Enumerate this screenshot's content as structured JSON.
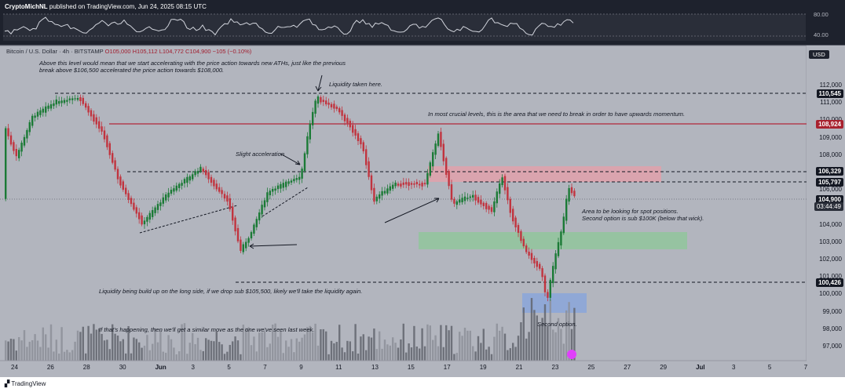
{
  "header": {
    "author": "CryptoMichNL",
    "text": "published on TradingView.com, Jun 24, 2025 08:15 UTC"
  },
  "symbol": {
    "name": "Bitcoin / U.S. Dollar · 4h · BITSTAMP",
    "ohlc": "O105,000 H105,112 L104,772 C104,900 −105 (−0.10%)"
  },
  "currency": "USD",
  "indicator_scale": [
    "80.00",
    "40.00"
  ],
  "price_scale": [
    "112,000",
    "111,000",
    "110,000",
    "109,000",
    "108,000",
    "107,000",
    "106,000",
    "105,000",
    "104,000",
    "103,000",
    "102,000",
    "101,000",
    "100,000",
    "99,000",
    "98,000",
    "97,000"
  ],
  "price_tags": [
    {
      "label": "110,545",
      "style": "dark"
    },
    {
      "label": "108,924",
      "style": "red"
    },
    {
      "label": "106,329",
      "style": "dark"
    },
    {
      "label": "105,797",
      "style": "dark"
    },
    {
      "label": "104,900",
      "style": "dark"
    },
    {
      "label": "03:44:49",
      "style": "dark"
    },
    {
      "label": "100,426",
      "style": "dark"
    }
  ],
  "time_axis": [
    "24",
    "26",
    "28",
    "30",
    "Jun",
    "3",
    "5",
    "7",
    "9",
    "11",
    "13",
    "15",
    "17",
    "19",
    "21",
    "23",
    "25",
    "27",
    "29",
    "Jul",
    "3",
    "5",
    "7"
  ],
  "annotations": {
    "ath_note_1": "Above this level would mean that we start accelerating with the price action towards new ATHs, just like the previous",
    "ath_note_2": "break above $106,500 accelerated the price action towards $108,000.",
    "liquidity_taken": "Liquidity taken here.",
    "crucial_levels": "In most crucial levels, this is the area that we need to break in order to have upwards momentum.",
    "slight_acceleration": "Slight acceleration",
    "spot_area_1": "Area to be looking for spot positions.",
    "spot_area_2": "Second option is sub $100K (below that wick).",
    "liquidity_build": "Liquidity being build up on the long side, if we drop sub $105,500, likely we'll take the liquidity again.",
    "if_happening": "If that's happening, then we'll get a similar move as the one we've seen last week.",
    "second_option": "Second option."
  },
  "footer": {
    "brand": "TradingView"
  },
  "colors": {
    "up": "#1b7a36",
    "down": "#c1343f",
    "red_level": "#b2273a",
    "zone_red": "#e3a0aa",
    "zone_green": "#8fc79a",
    "zone_blue": "#8aa6da"
  }
}
